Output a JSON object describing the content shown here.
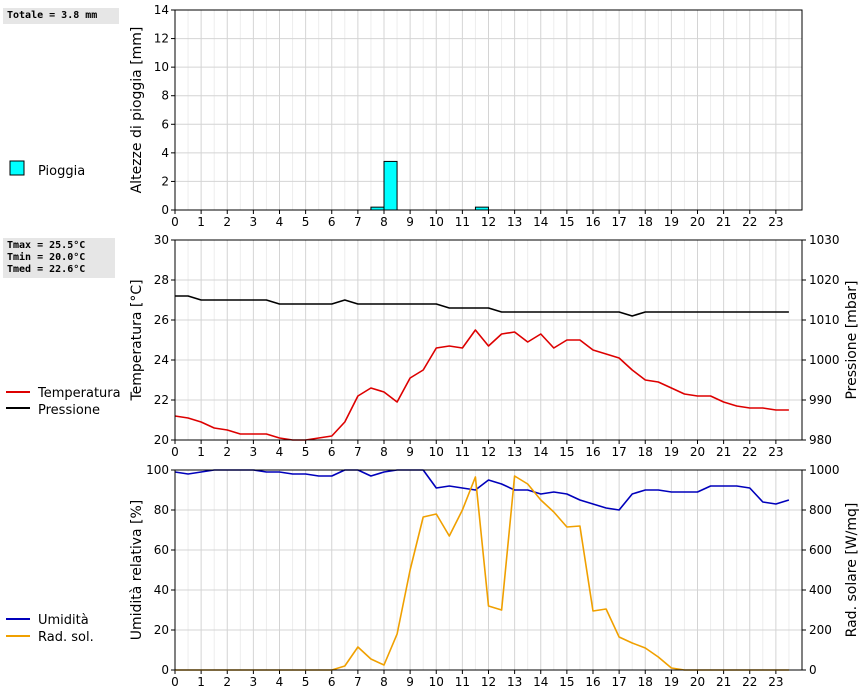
{
  "summaries": {
    "rain_total": "Totale = 3.8 mm",
    "tmax": "Tmax = 25.5°C",
    "tmin": "Tmin = 20.0°C",
    "tmed": "Tmed = 22.6°C"
  },
  "colors": {
    "rain": "#00ffff",
    "temperature": "#dd0000",
    "pressure": "#000000",
    "humidity": "#0000bb",
    "solar": "#f0a000"
  },
  "chart_data": [
    {
      "type": "bar",
      "ylabel": "Altezze di pioggia [mm]",
      "ylim": [
        0,
        14
      ],
      "yticks": [
        0,
        2,
        4,
        6,
        8,
        10,
        12,
        14
      ],
      "xticks": [
        "0",
        "1",
        "2",
        "3",
        "4",
        "5",
        "6",
        "7",
        "8",
        "9",
        "10",
        "11",
        "12",
        "13",
        "14",
        "15",
        "16",
        "17",
        "18",
        "19",
        "20",
        "21",
        "22",
        "23"
      ],
      "grid": true,
      "series": [
        {
          "name": "Pioggia",
          "x": [
            7.5,
            8.0,
            11.5
          ],
          "values": [
            0.2,
            3.4,
            0.2
          ]
        }
      ]
    },
    {
      "type": "line",
      "ylabel": "Temperatura [°C]",
      "ylim": [
        20,
        30
      ],
      "yticks": [
        20,
        22,
        24,
        26,
        28,
        30
      ],
      "y2label": "Pressione [mbar]",
      "y2lim": [
        980,
        1030
      ],
      "y2ticks": [
        980,
        990,
        1000,
        1010,
        1020,
        1030
      ],
      "xticks": [
        "0",
        "1",
        "2",
        "3",
        "4",
        "5",
        "6",
        "7",
        "8",
        "9",
        "10",
        "11",
        "12",
        "13",
        "14",
        "15",
        "16",
        "17",
        "18",
        "19",
        "20",
        "21",
        "22",
        "23"
      ],
      "grid": true,
      "series": [
        {
          "name": "Temperatura",
          "axis": "left",
          "x": [
            0,
            0.5,
            1,
            1.5,
            2,
            2.5,
            3,
            3.5,
            4,
            4.5,
            5,
            5.5,
            6,
            6.5,
            7,
            7.5,
            8,
            8.5,
            9,
            9.5,
            10,
            10.5,
            11,
            11.5,
            12,
            12.5,
            13,
            13.5,
            14,
            14.5,
            15,
            15.5,
            16,
            16.5,
            17,
            17.5,
            18,
            18.5,
            19,
            19.5,
            20,
            20.5,
            21,
            21.5,
            22,
            22.5,
            23,
            23.5
          ],
          "values": [
            21.2,
            21.1,
            20.9,
            20.6,
            20.5,
            20.3,
            20.3,
            20.3,
            20.1,
            20.0,
            20.0,
            20.1,
            20.2,
            20.9,
            22.2,
            22.6,
            22.4,
            21.9,
            23.1,
            23.5,
            24.6,
            24.7,
            24.6,
            25.5,
            24.7,
            25.3,
            25.4,
            24.9,
            25.3,
            24.6,
            25.0,
            25.0,
            24.5,
            24.3,
            24.1,
            23.5,
            23.0,
            22.9,
            22.6,
            22.3,
            22.2,
            22.2,
            21.9,
            21.7,
            21.6,
            21.6,
            21.5,
            21.5
          ]
        },
        {
          "name": "Pressione",
          "axis": "right",
          "x": [
            0,
            0.5,
            1,
            1.5,
            2,
            2.5,
            3,
            3.5,
            4,
            4.5,
            5,
            5.5,
            6,
            6.5,
            7,
            7.5,
            8,
            8.5,
            9,
            9.5,
            10,
            10.5,
            11,
            11.5,
            12,
            12.5,
            13,
            13.5,
            14,
            14.5,
            15,
            15.5,
            16,
            16.5,
            17,
            17.5,
            18,
            18.5,
            19,
            19.5,
            20,
            20.5,
            21,
            21.5,
            22,
            22.5,
            23,
            23.5
          ],
          "values": [
            1016,
            1016,
            1015,
            1015,
            1015,
            1015,
            1015,
            1015,
            1014,
            1014,
            1014,
            1014,
            1014,
            1015,
            1014,
            1014,
            1014,
            1014,
            1014,
            1014,
            1014,
            1013,
            1013,
            1013,
            1013,
            1012,
            1012,
            1012,
            1012,
            1012,
            1012,
            1012,
            1012,
            1012,
            1012,
            1011,
            1012,
            1012,
            1012,
            1012,
            1012,
            1012,
            1012,
            1012,
            1012,
            1012,
            1012,
            1012
          ]
        }
      ]
    },
    {
      "type": "line",
      "ylabel": "Umidità relativa [%]",
      "ylim": [
        0,
        100
      ],
      "yticks": [
        0,
        20,
        40,
        60,
        80,
        100
      ],
      "y2label": "Rad. solare [W/mq]",
      "y2lim": [
        0,
        1000
      ],
      "y2ticks": [
        0,
        200,
        400,
        600,
        800,
        1000
      ],
      "xticks": [
        "0",
        "1",
        "2",
        "3",
        "4",
        "5",
        "6",
        "7",
        "8",
        "9",
        "10",
        "11",
        "12",
        "13",
        "14",
        "15",
        "16",
        "17",
        "18",
        "19",
        "20",
        "21",
        "22",
        "23"
      ],
      "grid": true,
      "series": [
        {
          "name": "Umidità",
          "axis": "left",
          "x": [
            0,
            0.5,
            1,
            1.5,
            2,
            2.5,
            3,
            3.5,
            4,
            4.5,
            5,
            5.5,
            6,
            6.5,
            7,
            7.5,
            8,
            8.5,
            9,
            9.5,
            10,
            10.5,
            11,
            11.5,
            12,
            12.5,
            13,
            13.5,
            14,
            14.5,
            15,
            15.5,
            16,
            16.5,
            17,
            17.5,
            18,
            18.5,
            19,
            19.5,
            20,
            20.5,
            21,
            21.5,
            22,
            22.5,
            23,
            23.5
          ],
          "values": [
            99,
            98,
            99,
            100,
            100,
            100,
            100,
            99,
            99,
            98,
            98,
            97,
            97,
            100,
            100,
            97,
            99,
            100,
            100,
            100,
            91,
            92,
            91,
            90,
            95,
            93,
            90,
            90,
            88,
            89,
            88,
            85,
            83,
            81,
            80,
            88,
            90,
            90,
            89,
            89,
            89,
            92,
            92,
            92,
            91,
            84,
            83,
            85
          ]
        },
        {
          "name": "Rad. sol.",
          "axis": "right",
          "x": [
            0,
            0.5,
            1,
            1.5,
            2,
            2.5,
            3,
            3.5,
            4,
            4.5,
            5,
            5.5,
            6,
            6.5,
            7,
            7.5,
            8,
            8.5,
            9,
            9.5,
            10,
            10.5,
            11,
            11.5,
            12,
            12.5,
            13,
            13.5,
            14,
            14.5,
            15,
            15.5,
            16,
            16.5,
            17,
            17.5,
            18,
            18.5,
            19,
            19.5,
            20,
            20.5,
            21,
            21.5,
            22,
            22.5,
            23,
            23.5
          ],
          "values": [
            0,
            0,
            0,
            0,
            0,
            0,
            0,
            0,
            0,
            0,
            0,
            0,
            0,
            20,
            115,
            55,
            25,
            180,
            500,
            765,
            780,
            670,
            800,
            965,
            320,
            300,
            970,
            930,
            850,
            790,
            715,
            720,
            295,
            305,
            165,
            135,
            110,
            65,
            10,
            0,
            0,
            0,
            0,
            0,
            0,
            0,
            0,
            0
          ]
        }
      ]
    }
  ],
  "legend": {
    "rain": "Pioggia",
    "temperature": "Temperatura",
    "pressure": "Pressione",
    "humidity": "Umidità",
    "solar": "Rad. sol."
  }
}
